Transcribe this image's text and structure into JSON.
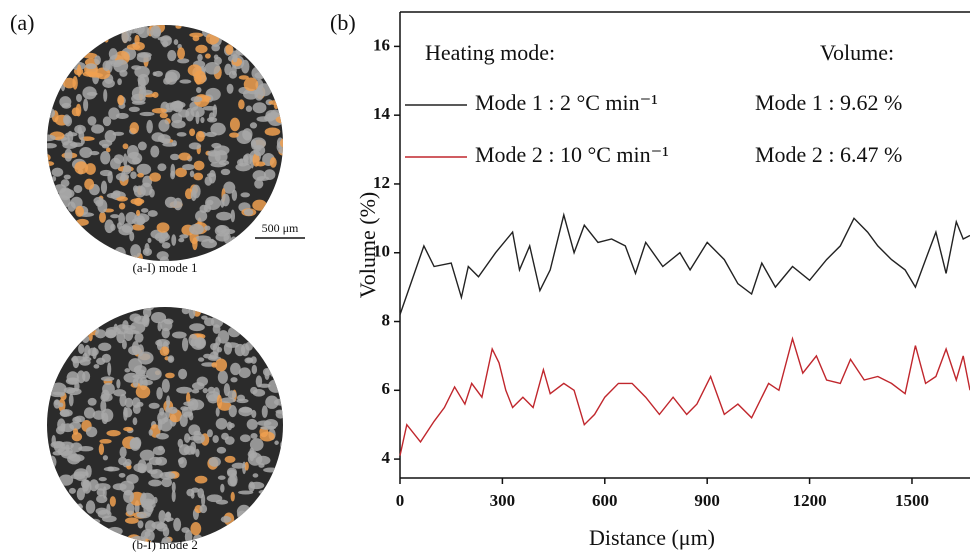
{
  "panel_a": {
    "label": "(a)",
    "caption_1": "(a-I) mode 1",
    "caption_2": "(b-I) mode 2",
    "scale_bar": "500 μm"
  },
  "chart_data": {
    "type": "line",
    "panel_label": "(b)",
    "x_label": "Distance (μm)",
    "y_label": "Volume (%)",
    "legend_title": "Heating mode:",
    "annotation_title": "Volume:",
    "annotations": [
      "Mode 1 : 9.62 %",
      "Mode 2 : 6.47 %"
    ],
    "xlim": [
      0,
      1670
    ],
    "xticks": [
      0,
      300,
      600,
      900,
      1200,
      1500
    ],
    "ylim": [
      3.45,
      17
    ],
    "yticks": [
      4,
      6,
      8,
      10,
      12,
      14,
      16
    ],
    "series": [
      {
        "name": "Mode 1 : 2 °C min⁻¹",
        "color": "#222222",
        "x": [
          0,
          70,
          100,
          150,
          180,
          200,
          230,
          280,
          330,
          350,
          380,
          410,
          440,
          480,
          510,
          540,
          580,
          620,
          660,
          690,
          720,
          770,
          820,
          850,
          900,
          950,
          990,
          1030,
          1060,
          1100,
          1150,
          1200,
          1250,
          1290,
          1330,
          1370,
          1400,
          1440,
          1480,
          1510,
          1540,
          1570,
          1600,
          1630,
          1650,
          1670
        ],
        "values": [
          8.2,
          10.2,
          9.6,
          9.7,
          8.7,
          9.6,
          9.3,
          10.0,
          10.6,
          9.5,
          10.2,
          8.9,
          9.5,
          11.1,
          10.0,
          10.8,
          10.3,
          10.4,
          10.2,
          9.4,
          10.3,
          9.6,
          10.0,
          9.5,
          10.3,
          9.8,
          9.1,
          8.8,
          9.7,
          9.0,
          9.6,
          9.2,
          9.8,
          10.2,
          11.0,
          10.6,
          10.2,
          9.8,
          9.5,
          9.0,
          9.8,
          10.6,
          9.4,
          10.9,
          10.4,
          10.5
        ]
      },
      {
        "name": "Mode 2 : 10 °C min⁻¹",
        "color": "#c0272d",
        "x": [
          0,
          20,
          60,
          100,
          130,
          160,
          190,
          210,
          240,
          270,
          290,
          310,
          330,
          360,
          390,
          420,
          440,
          480,
          510,
          540,
          570,
          600,
          640,
          680,
          720,
          760,
          800,
          840,
          870,
          910,
          950,
          990,
          1030,
          1080,
          1110,
          1150,
          1180,
          1220,
          1250,
          1290,
          1320,
          1360,
          1400,
          1440,
          1480,
          1510,
          1540,
          1570,
          1600,
          1630,
          1650,
          1670
        ],
        "values": [
          4.1,
          5.0,
          4.5,
          5.1,
          5.5,
          6.1,
          5.6,
          6.2,
          5.8,
          7.2,
          6.8,
          6.0,
          5.5,
          5.8,
          5.5,
          6.6,
          5.9,
          6.2,
          6.0,
          5.0,
          5.3,
          5.8,
          6.2,
          6.2,
          5.8,
          5.3,
          5.8,
          5.3,
          5.6,
          6.4,
          5.3,
          5.6,
          5.2,
          6.2,
          6.0,
          7.5,
          6.5,
          7.0,
          6.3,
          6.2,
          6.9,
          6.3,
          6.4,
          6.2,
          5.9,
          7.3,
          6.2,
          6.4,
          7.2,
          6.3,
          7.0,
          6.0
        ]
      }
    ]
  }
}
